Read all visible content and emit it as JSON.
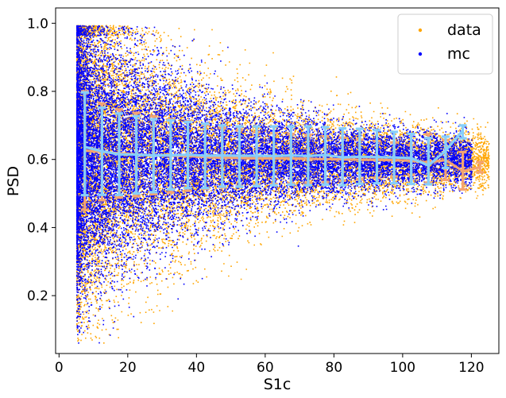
{
  "chart_data": {
    "type": "scatter",
    "xlabel": "S1c",
    "ylabel": "PSD",
    "xlim": [
      -1,
      128
    ],
    "ylim": [
      0.03,
      1.045
    ],
    "xticks": [
      0,
      20,
      40,
      60,
      80,
      100,
      120
    ],
    "yticks": [
      0.2,
      0.4,
      0.6,
      0.8,
      1.0
    ],
    "ytick_labels": [
      "0.2",
      "0.4",
      "0.6",
      "0.8",
      "1.0"
    ],
    "legend_position": "top-right",
    "legend": [
      {
        "label": "data",
        "color": "#FFA500"
      },
      {
        "label": "mc",
        "color": "#0000FF"
      }
    ],
    "scatter_colors": {
      "data": "#FFA500",
      "mc": "#0000FF"
    },
    "profile_colors": {
      "data": "#F4A470",
      "mc": "#87CEFA"
    },
    "profiles": {
      "data": {
        "x": [
          7.5,
          12.5,
          17.5,
          22.5,
          27.5,
          32.5,
          37.5,
          42.5,
          47.5,
          52.5,
          57.5,
          62.5,
          67.5,
          72.5,
          77.5,
          82.5,
          87.5,
          92.5,
          97.5,
          102.5,
          107.5,
          112.5,
          117.5,
          122.5
        ],
        "mean": [
          0.626,
          0.622,
          0.618,
          0.615,
          0.612,
          0.611,
          0.61,
          0.607,
          0.605,
          0.604,
          0.603,
          0.603,
          0.603,
          0.602,
          0.601,
          0.6,
          0.599,
          0.599,
          0.598,
          0.596,
          0.591,
          0.598,
          0.566,
          0.577
        ],
        "lower": [
          0.452,
          0.48,
          0.488,
          0.492,
          0.498,
          0.503,
          0.508,
          0.514,
          0.518,
          0.522,
          0.526,
          0.528,
          0.53,
          0.532,
          0.534,
          0.538,
          0.542,
          0.546,
          0.55,
          0.554,
          0.532,
          0.54,
          0.512,
          0.562
        ],
        "upper": [
          0.8,
          0.764,
          0.747,
          0.737,
          0.727,
          0.718,
          0.712,
          0.701,
          0.692,
          0.686,
          0.68,
          0.677,
          0.675,
          0.672,
          0.668,
          0.664,
          0.658,
          0.654,
          0.65,
          0.642,
          0.674,
          0.657,
          0.622,
          0.592
        ]
      },
      "mc": {
        "x": [
          7.5,
          12.5,
          17.5,
          22.5,
          27.5,
          32.5,
          37.5,
          42.5,
          47.5,
          52.5,
          57.5,
          62.5,
          67.5,
          72.5,
          77.5,
          82.5,
          87.5,
          92.5,
          97.5,
          102.5,
          107.5,
          112.5,
          117.5
        ],
        "mean": [
          0.637,
          0.624,
          0.615,
          0.614,
          0.612,
          0.612,
          0.614,
          0.611,
          0.612,
          0.611,
          0.611,
          0.61,
          0.612,
          0.61,
          0.613,
          0.606,
          0.608,
          0.607,
          0.606,
          0.604,
          0.582,
          0.626,
          0.685
        ],
        "lower": [
          0.495,
          0.496,
          0.496,
          0.5,
          0.504,
          0.512,
          0.516,
          0.516,
          0.52,
          0.52,
          0.522,
          0.524,
          0.526,
          0.524,
          0.526,
          0.524,
          0.528,
          0.53,
          0.53,
          0.528,
          0.527,
          0.575,
          0.662
        ],
        "upper": [
          0.797,
          0.752,
          0.735,
          0.727,
          0.718,
          0.715,
          0.71,
          0.705,
          0.7,
          0.697,
          0.697,
          0.697,
          0.697,
          0.697,
          0.695,
          0.691,
          0.69,
          0.686,
          0.681,
          0.675,
          0.663,
          0.667,
          0.7
        ]
      }
    }
  }
}
